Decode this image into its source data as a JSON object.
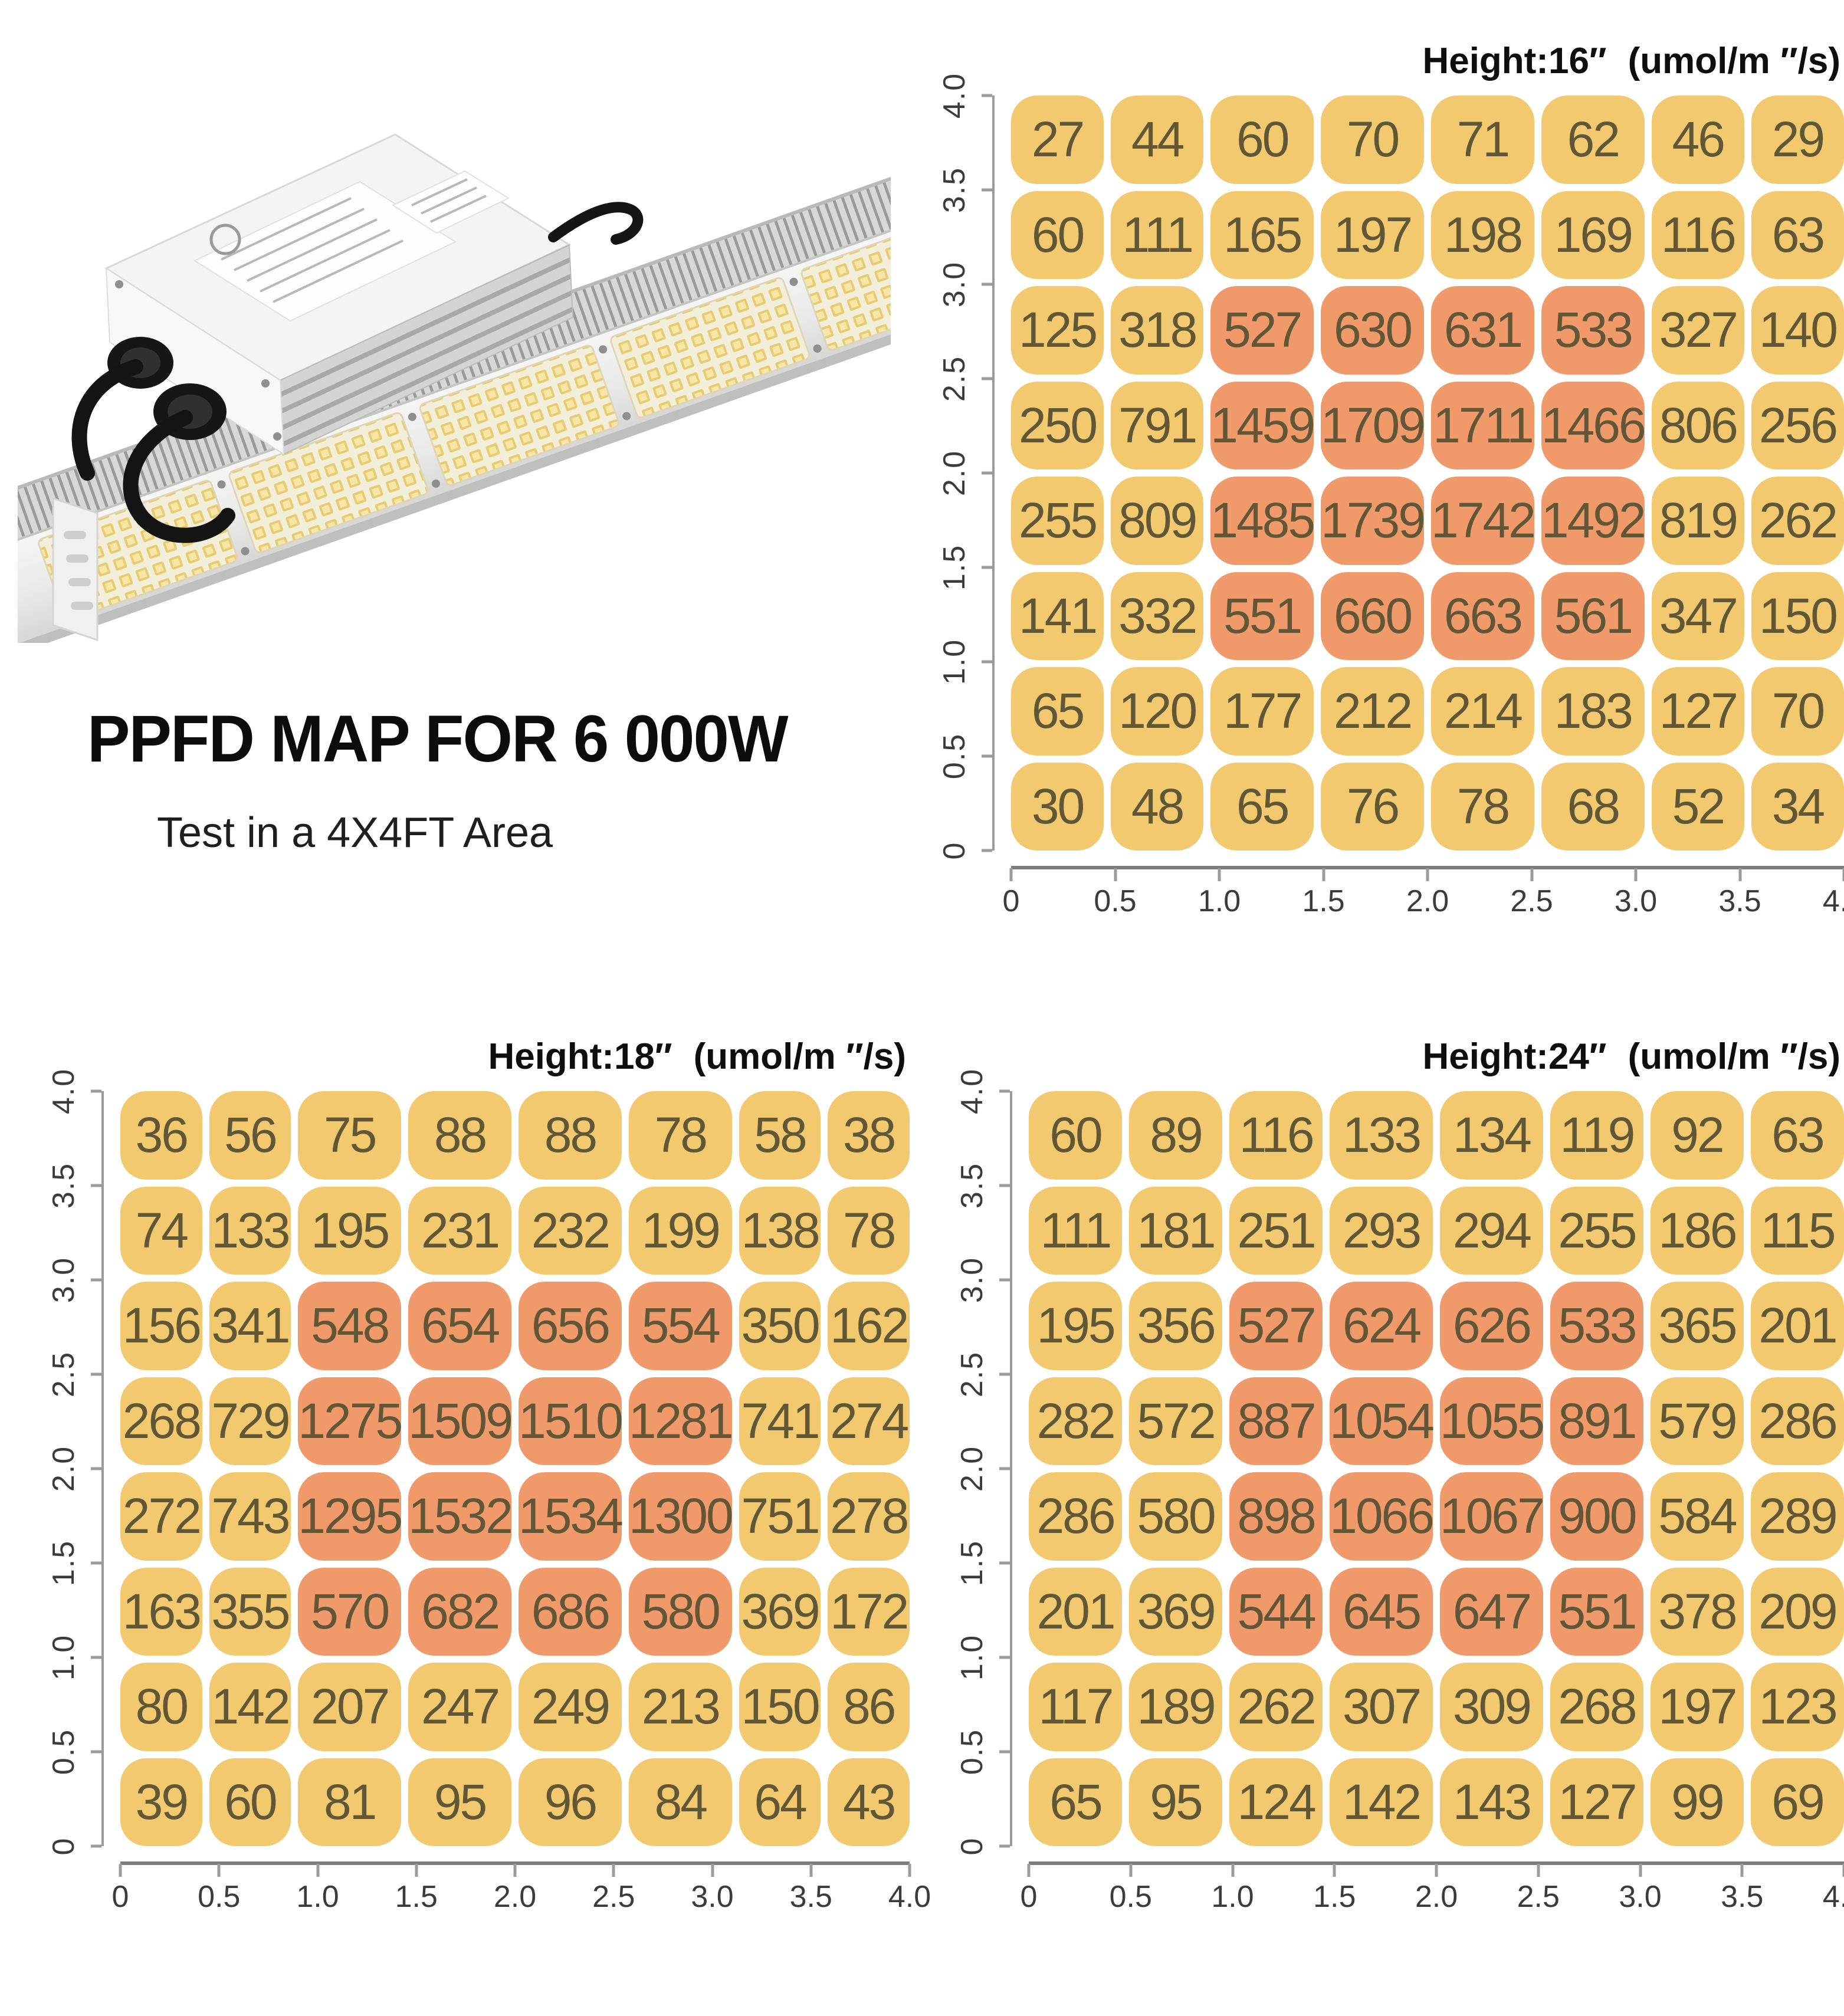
{
  "title_block": {
    "title": "PPFD MAP FOR 6 000W",
    "subtitle": "Test in a 4X4FT Area"
  },
  "product_image": {
    "description": "white LED grow light bar with finned heatsink and yellow LED panels, plus external driver power supply box with black cable glands"
  },
  "colors": {
    "cell_yellow": "#f2c96e",
    "cell_orange": "#f09a6c",
    "cell_text": "#615636",
    "axis_line": "#9b9b9b",
    "tick_text": "#3b3b3b",
    "header_text": "#0e0e0e"
  },
  "axes": {
    "x_ticks": [
      "0",
      "0.5",
      "1.0",
      "1.5",
      "2.0",
      "2.5",
      "3.0",
      "3.5",
      "4.0"
    ],
    "y_ticks": [
      "4.0",
      "3.5",
      "3.0",
      "2.5",
      "2.0",
      "1.5",
      "1.0",
      "0.5",
      "0"
    ]
  },
  "chart_data": [
    {
      "type": "heatmap",
      "height_label": "Height:16″",
      "unit_label": "(umol/m ″/s)",
      "title": "Height:16″ (umol/m ″/s)",
      "x_range": [
        0,
        4.0
      ],
      "y_range": [
        0,
        4.0
      ],
      "grid": "8x8 cells over 4x4 ft, values are PPFD",
      "hot_rows": [
        2,
        5
      ],
      "hot_cols": [
        2,
        5
      ],
      "rows": [
        [
          27,
          44,
          60,
          70,
          71,
          62,
          46,
          29
        ],
        [
          60,
          111,
          165,
          197,
          198,
          169,
          116,
          63
        ],
        [
          125,
          318,
          527,
          630,
          631,
          533,
          327,
          140
        ],
        [
          250,
          791,
          1459,
          1709,
          1711,
          1466,
          806,
          256
        ],
        [
          255,
          809,
          1485,
          1739,
          1742,
          1492,
          819,
          262
        ],
        [
          141,
          332,
          551,
          660,
          663,
          561,
          347,
          150
        ],
        [
          65,
          120,
          177,
          212,
          214,
          183,
          127,
          70
        ],
        [
          30,
          48,
          65,
          76,
          78,
          68,
          52,
          34
        ]
      ]
    },
    {
      "type": "heatmap",
      "height_label": "Height:18″",
      "unit_label": "(umol/m ″/s)",
      "title": "Height:18″ (umol/m ″/s)",
      "x_range": [
        0,
        4.0
      ],
      "y_range": [
        0,
        4.0
      ],
      "grid": "8x8 cells over 4x4 ft, values are PPFD",
      "hot_rows": [
        2,
        5
      ],
      "hot_cols": [
        2,
        5
      ],
      "rows": [
        [
          36,
          56,
          75,
          88,
          88,
          78,
          58,
          38
        ],
        [
          74,
          133,
          195,
          231,
          232,
          199,
          138,
          78
        ],
        [
          156,
          341,
          548,
          654,
          656,
          554,
          350,
          162
        ],
        [
          268,
          729,
          1275,
          1509,
          1510,
          1281,
          741,
          274
        ],
        [
          272,
          743,
          1295,
          1532,
          1534,
          1300,
          751,
          278
        ],
        [
          163,
          355,
          570,
          682,
          686,
          580,
          369,
          172
        ],
        [
          80,
          142,
          207,
          247,
          249,
          213,
          150,
          86
        ],
        [
          39,
          60,
          81,
          95,
          96,
          84,
          64,
          43
        ]
      ]
    },
    {
      "type": "heatmap",
      "height_label": "Height:24″",
      "unit_label": "(umol/m ″/s)",
      "title": "Height:24″ (umol/m ″/s)",
      "x_range": [
        0,
        4.0
      ],
      "y_range": [
        0,
        4.0
      ],
      "grid": "8x8 cells over 4x4 ft, values are PPFD",
      "hot_rows": [
        2,
        5
      ],
      "hot_cols": [
        2,
        5
      ],
      "rows": [
        [
          60,
          89,
          116,
          133,
          134,
          119,
          92,
          63
        ],
        [
          111,
          181,
          251,
          293,
          294,
          255,
          186,
          115
        ],
        [
          195,
          356,
          527,
          624,
          626,
          533,
          365,
          201
        ],
        [
          282,
          572,
          887,
          1054,
          1055,
          891,
          579,
          286
        ],
        [
          286,
          580,
          898,
          1066,
          1067,
          900,
          584,
          289
        ],
        [
          201,
          369,
          544,
          645,
          647,
          551,
          378,
          209
        ],
        [
          117,
          189,
          262,
          307,
          309,
          268,
          197,
          123
        ],
        [
          65,
          95,
          124,
          142,
          143,
          127,
          99,
          69
        ]
      ]
    }
  ]
}
